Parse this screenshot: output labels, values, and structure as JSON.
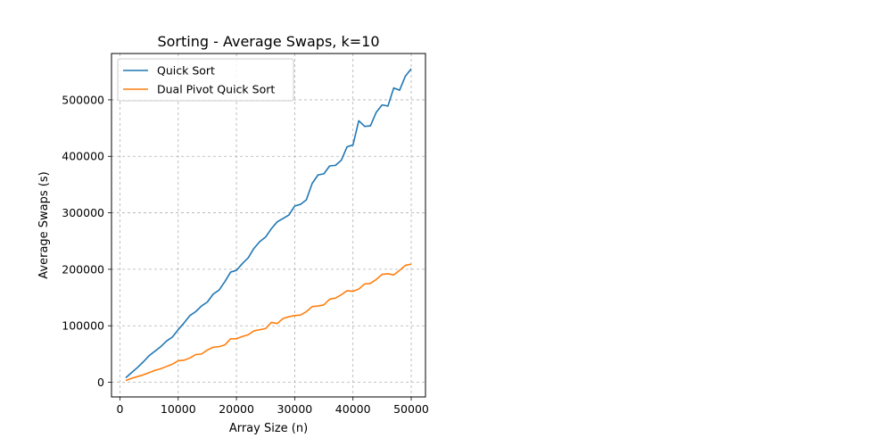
{
  "chart_data": {
    "type": "line",
    "title": "Sorting - Average Swaps, k=10",
    "xlabel": "Array Size (n)",
    "ylabel": "Average Swaps (s)",
    "xlim": [
      -1450,
      52450
    ],
    "ylim": [
      -26000,
      582000
    ],
    "grid": true,
    "legend_position": "top-left",
    "x_ticks": [
      0,
      10000,
      20000,
      30000,
      40000,
      50000
    ],
    "y_ticks": [
      0,
      100000,
      200000,
      300000,
      400000,
      500000
    ],
    "x_tick_labels": [
      "0",
      "10000",
      "20000",
      "30000",
      "40000",
      "50000"
    ],
    "y_tick_labels": [
      "0",
      "100000",
      "200000",
      "300000",
      "400000",
      "500000"
    ],
    "x": [
      1000,
      2000,
      3000,
      4000,
      5000,
      6000,
      7000,
      8000,
      9000,
      10000,
      11000,
      12000,
      13000,
      14000,
      15000,
      16000,
      17000,
      18000,
      19000,
      20000,
      21000,
      22000,
      23000,
      24000,
      25000,
      26000,
      27000,
      28000,
      29000,
      30000,
      31000,
      32000,
      33000,
      34000,
      35000,
      36000,
      37000,
      38000,
      39000,
      40000,
      41000,
      42000,
      43000,
      44000,
      45000,
      46000,
      47000,
      48000,
      49000,
      50000
    ],
    "series": [
      {
        "name": "Quick Sort",
        "color": "#1f77b4",
        "values": [
          8000,
          17000,
          26000,
          36000,
          47000,
          55000,
          63000,
          73000,
          80000,
          93000,
          105000,
          118000,
          125000,
          135000,
          142000,
          156000,
          163000,
          178000,
          195000,
          198000,
          210000,
          220000,
          237000,
          249000,
          257000,
          272000,
          284000,
          290000,
          296000,
          312000,
          315000,
          323000,
          352000,
          367000,
          369000,
          383000,
          384000,
          393000,
          417000,
          420000,
          463000,
          453000,
          454000,
          478000,
          491000,
          489000,
          521000,
          517000,
          542000,
          555000
        ]
      },
      {
        "name": "Dual Pivot Quick Sort",
        "color": "#ff7f0e",
        "values": [
          3000,
          7000,
          10000,
          13000,
          17000,
          21000,
          24000,
          28000,
          32000,
          38000,
          39000,
          43000,
          49000,
          50000,
          57000,
          62000,
          63000,
          66000,
          77000,
          77000,
          81000,
          84000,
          91000,
          93000,
          95000,
          106000,
          104000,
          113000,
          116000,
          118000,
          119000,
          125000,
          134000,
          135000,
          137000,
          147000,
          149000,
          155000,
          162000,
          161000,
          165000,
          174000,
          175000,
          182000,
          191000,
          192000,
          190000,
          198000,
          207000,
          209000
        ]
      }
    ]
  }
}
